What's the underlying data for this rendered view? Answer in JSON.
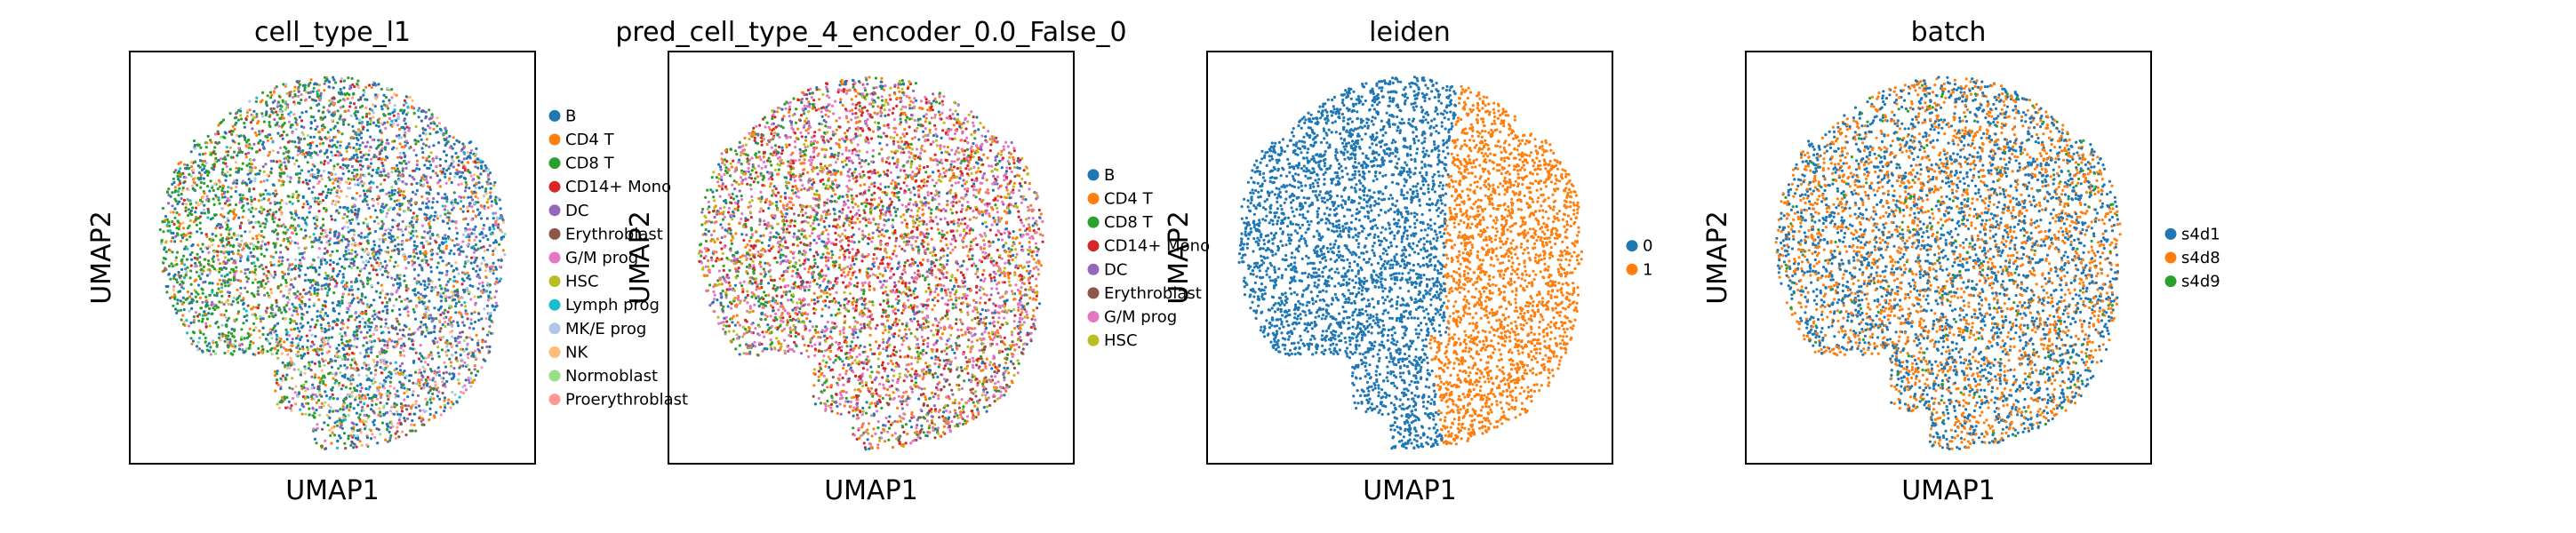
{
  "chart_data": [
    {
      "type": "scatter",
      "title": "cell_type_l1",
      "xlabel": "UMAP1",
      "ylabel": "UMAP2",
      "legend": "right",
      "grid": false,
      "shape": "blob",
      "categories": [
        {
          "name": "B",
          "color": "#1f77b4",
          "weight": 0.24,
          "region": "center-right"
        },
        {
          "name": "CD4 T",
          "color": "#ff7f0e",
          "weight": 0.09,
          "region": "all"
        },
        {
          "name": "CD8 T",
          "color": "#2ca02c",
          "weight": 0.24,
          "region": "left"
        },
        {
          "name": "CD14+ Mono",
          "color": "#d62728",
          "weight": 0.06,
          "region": "center"
        },
        {
          "name": "DC",
          "color": "#9467bd",
          "weight": 0.07,
          "region": "right"
        },
        {
          "name": "Erythroblast",
          "color": "#8c564b",
          "weight": 0.04,
          "region": "bottom-right"
        },
        {
          "name": "G/M prog",
          "color": "#e377c2",
          "weight": 0.05,
          "region": "right"
        },
        {
          "name": "HSC",
          "color": "#bcbd22",
          "weight": 0.02,
          "region": "all"
        },
        {
          "name": "Lymph prog",
          "color": "#17becf",
          "weight": 0.02,
          "region": "all"
        },
        {
          "name": "MK/E prog",
          "color": "#aec7e8",
          "weight": 0.05,
          "region": "right"
        },
        {
          "name": "NK",
          "color": "#ffbb78",
          "weight": 0.04,
          "region": "all"
        },
        {
          "name": "Normoblast",
          "color": "#98df8a",
          "weight": 0.03,
          "region": "bottom"
        },
        {
          "name": "Proerythroblast",
          "color": "#ff9896",
          "weight": 0.05,
          "region": "bottom-right"
        }
      ]
    },
    {
      "type": "scatter",
      "title": "pred_cell_type_4_encoder_0.0_False_0",
      "xlabel": "UMAP1",
      "ylabel": "UMAP2",
      "legend": "right",
      "grid": false,
      "shape": "blob",
      "categories": [
        {
          "name": "B",
          "color": "#1f77b4",
          "weight": 0.08,
          "region": "all"
        },
        {
          "name": "CD4 T",
          "color": "#ff7f0e",
          "weight": 0.16,
          "region": "all"
        },
        {
          "name": "CD8 T",
          "color": "#2ca02c",
          "weight": 0.13,
          "region": "left"
        },
        {
          "name": "CD14+ Mono",
          "color": "#d62728",
          "weight": 0.22,
          "region": "center"
        },
        {
          "name": "DC",
          "color": "#9467bd",
          "weight": 0.05,
          "region": "all"
        },
        {
          "name": "Erythroblast",
          "color": "#8c564b",
          "weight": 0.05,
          "region": "bottom-right"
        },
        {
          "name": "G/M prog",
          "color": "#e377c2",
          "weight": 0.21,
          "region": "all"
        },
        {
          "name": "HSC",
          "color": "#bcbd22",
          "weight": 0.1,
          "region": "all"
        }
      ]
    },
    {
      "type": "scatter",
      "title": "leiden",
      "xlabel": "UMAP1",
      "ylabel": "UMAP2",
      "legend": "right",
      "grid": false,
      "shape": "blob",
      "categories": [
        {
          "name": "0",
          "color": "#1f77b4",
          "weight": 0.72,
          "region": "left-of-boundary"
        },
        {
          "name": "1",
          "color": "#ff7f0e",
          "weight": 0.28,
          "region": "right-of-boundary"
        }
      ]
    },
    {
      "type": "scatter",
      "title": "batch",
      "xlabel": "UMAP1",
      "ylabel": "UMAP2",
      "legend": "right",
      "grid": false,
      "shape": "blob",
      "categories": [
        {
          "name": "s4d1",
          "color": "#1f77b4",
          "weight": 0.5,
          "region": "all"
        },
        {
          "name": "s4d8",
          "color": "#ff7f0e",
          "weight": 0.46,
          "region": "all"
        },
        {
          "name": "s4d9",
          "color": "#2ca02c",
          "weight": 0.04,
          "region": "all"
        }
      ]
    }
  ]
}
